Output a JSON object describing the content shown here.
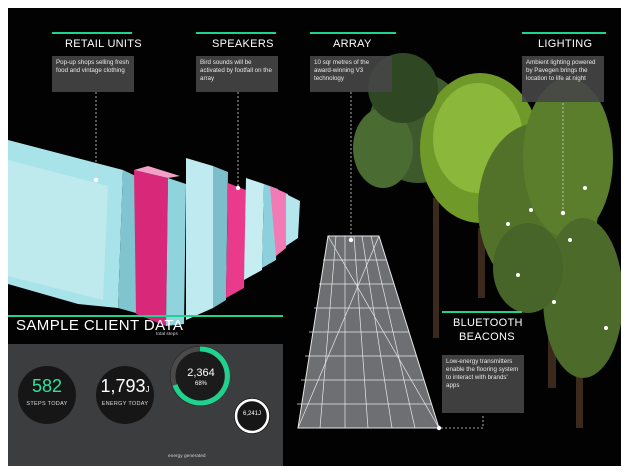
{
  "labels": {
    "retail": {
      "title": "RETAIL UNITS",
      "text": "Pop-up shops selling fresh food and vintage clothing"
    },
    "speakers": {
      "title": "SPEAKERS",
      "text": "Bird sounds will be activated by footfall on the array"
    },
    "array": {
      "title": "ARRAY",
      "text": "10 sqr metres of the award-winning V3 technology"
    },
    "lighting": {
      "title": "LIGHTING",
      "text": "Ambient lighting powered by Pavegen brings the location to life at night"
    },
    "beacons": {
      "title_line1": "BLUETOOTH",
      "title_line2": "BEACONS",
      "text": "Low-energy transmitters enable the flooring system to interact with brands' apps"
    }
  },
  "sample": {
    "title": "SAMPLE CLIENT DATA",
    "steps_value": "582",
    "steps_caption": "STEPS TODAY",
    "energy_value": "1,793",
    "energy_unit": "J",
    "energy_caption": "ENERGY TODAY",
    "total_steps_label": "total steps",
    "total_steps_value": "2,364",
    "total_steps_percent": "68%",
    "energy_generated_value": "6,241",
    "energy_generated_unit": "J",
    "energy_generated_label": "energy generated"
  },
  "colors": {
    "accent": "#1fd38f",
    "background": "#020202",
    "panel": "#3c3d3f",
    "steps_number": "#2fe39f",
    "kiosk_cyan": "#aee6ec",
    "kiosk_pink": "#d8287a"
  },
  "icons": [
    "tree-cluster-illustration",
    "kiosk-illustration",
    "energy-floor-array-illustration"
  ]
}
